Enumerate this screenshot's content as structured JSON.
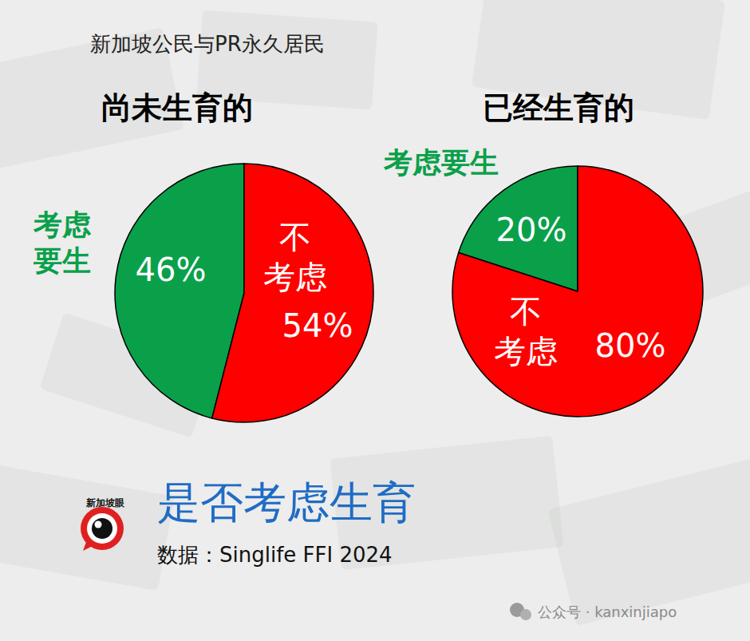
{
  "page": {
    "header": "新加坡公民与PR永久居民",
    "title": "是否考虑生育",
    "source": "数据：Singlife FFI 2024",
    "logo": "新加坡眼",
    "watermark": "公众号 · kanxinjiapo"
  },
  "chart_data": [
    {
      "type": "pie",
      "title": "尚未生育的",
      "categories": [
        "考虑要生",
        "不考虑"
      ],
      "values": [
        46,
        54
      ],
      "value_labels": [
        "46%",
        "54%"
      ],
      "colors": [
        "#0aa04a",
        "#ff0000"
      ],
      "data_labels": true
    },
    {
      "type": "pie",
      "title": "已经生育的",
      "categories": [
        "考虑要生",
        "不考虑"
      ],
      "values": [
        20,
        80
      ],
      "value_labels": [
        "20%",
        "80%"
      ],
      "colors": [
        "#0aa04a",
        "#ff0000"
      ],
      "data_labels": true
    }
  ]
}
